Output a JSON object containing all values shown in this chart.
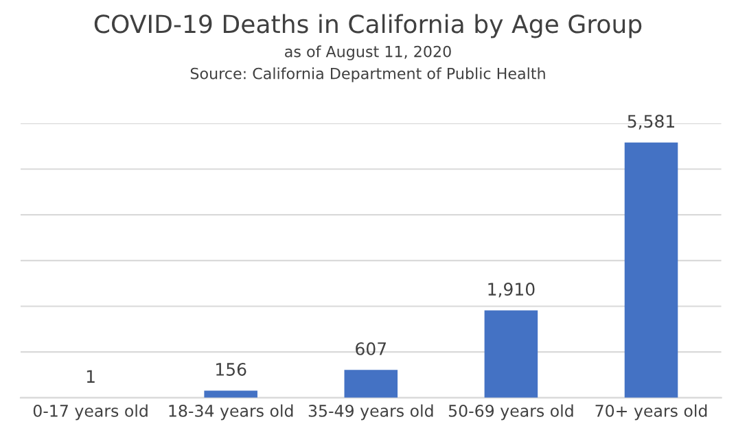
{
  "chart_data": {
    "type": "bar",
    "title": "COVID-19 Deaths in California by Age Group",
    "subtitle": "as of August 11, 2020",
    "annotations": [
      "Source: California Department of Public Health"
    ],
    "categories": [
      "0-17 years old",
      "18-34 years old",
      "35-49 years old",
      "50-69 years old",
      "70+ years old"
    ],
    "values": [
      1,
      156,
      607,
      1910,
      5581
    ],
    "value_labels": [
      "1",
      "156",
      "607",
      "1,910",
      "5,581"
    ],
    "color": "#4472c4",
    "ylim": [
      0,
      6000
    ],
    "yticks": [
      {
        "value": 0,
        "label": null
      },
      {
        "value": 1000,
        "label": null
      },
      {
        "value": 2000,
        "label": null
      },
      {
        "value": 3000,
        "label": null
      },
      {
        "value": 4000,
        "label": null
      },
      {
        "value": 5000,
        "label": null
      },
      {
        "value": 6000,
        "label": null
      }
    ],
    "grid": "y",
    "legend": false
  }
}
